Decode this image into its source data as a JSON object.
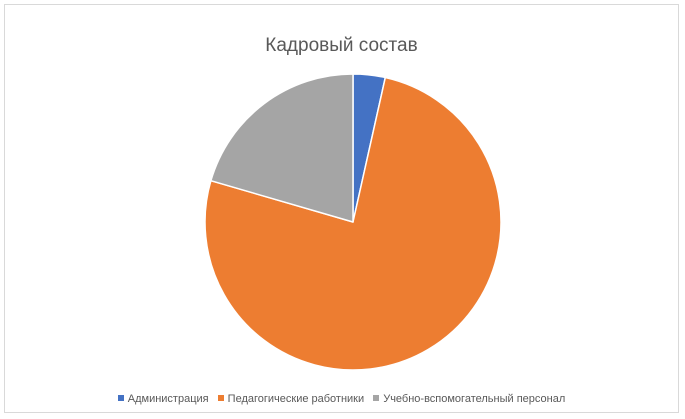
{
  "chart_data": {
    "type": "pie",
    "title": "Кадровый состав",
    "categories": [
      "Администрация",
      "Педагогические работники",
      "Учебно-вспомогательный персонал"
    ],
    "values": [
      3.5,
      76,
      20.5
    ],
    "colors": [
      "#4472c4",
      "#ed7d31",
      "#a5a5a5"
    ],
    "legend": "bottom",
    "start_angle_deg": 0,
    "direction": "clockwise"
  }
}
